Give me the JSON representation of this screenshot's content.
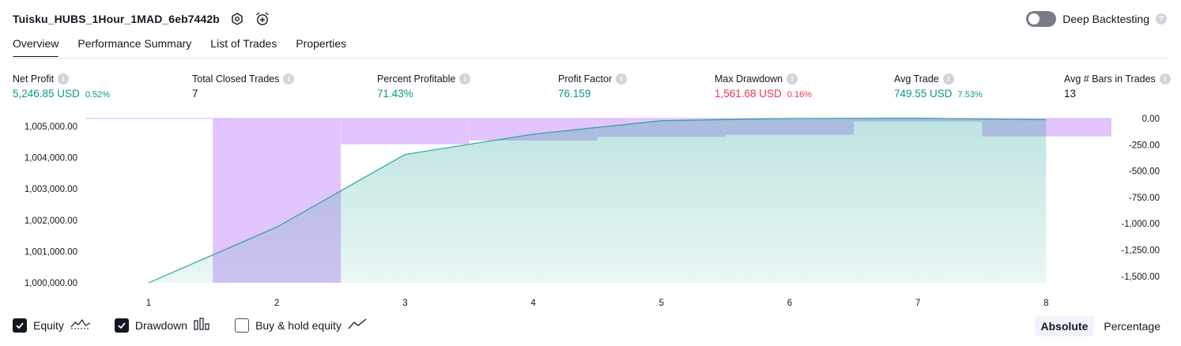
{
  "header": {
    "strategy_name": "Tuisku_HUBS_1Hour_1MAD_6eb7442b",
    "deep_backtesting_label": "Deep Backtesting",
    "icons": [
      "settings-icon",
      "alarm-plus-icon",
      "help-icon"
    ]
  },
  "tabs": [
    {
      "label": "Overview",
      "active": true
    },
    {
      "label": "Performance Summary",
      "active": false
    },
    {
      "label": "List of Trades",
      "active": false
    },
    {
      "label": "Properties",
      "active": false
    }
  ],
  "metrics": [
    {
      "label": "Net Profit",
      "value": "5,246.85 USD",
      "pct": "0.52%",
      "color": "green"
    },
    {
      "label": "Total Closed Trades",
      "value": "7",
      "pct": "",
      "color": "dark"
    },
    {
      "label": "Percent Profitable",
      "value": "71.43%",
      "pct": "",
      "color": "green"
    },
    {
      "label": "Profit Factor",
      "value": "76.159",
      "pct": "",
      "color": "green"
    },
    {
      "label": "Max Drawdown",
      "value": "1,561.68 USD",
      "pct": "0.16%",
      "color": "red"
    },
    {
      "label": "Avg Trade",
      "value": "749.55 USD",
      "pct": "7.53%",
      "color": "green"
    },
    {
      "label": "Avg # Bars in Trades",
      "value": "13",
      "pct": "",
      "color": "dark"
    }
  ],
  "chart_data": {
    "type": "area",
    "x": [
      1,
      2,
      3,
      4,
      5,
      6,
      7,
      8
    ],
    "series": [
      {
        "name": "Equity",
        "type": "area",
        "values": [
          1000000,
          1001780,
          1004100,
          1004750,
          1005180,
          1005250,
          1005260,
          1005210
        ]
      },
      {
        "name": "Drawdown",
        "type": "bar",
        "axis": "right",
        "values": [
          0,
          -1561.68,
          -245,
          -210,
          -175,
          -155,
          -30,
          -170
        ]
      }
    ],
    "left_axis": {
      "ticks": [
        "1,000,000.00",
        "1,001,000.00",
        "1,002,000.00",
        "1,003,000.00",
        "1,004,000.00",
        "1,005,000.00"
      ],
      "range": [
        1000000,
        1005250
      ]
    },
    "right_axis": {
      "ticks": [
        "0.00",
        "-250.00",
        "-500.00",
        "-750.00",
        "-1,000.00",
        "-1,250.00",
        "-1,500.00"
      ],
      "range": [
        -1561.68,
        0
      ]
    },
    "x_ticks": [
      "1",
      "2",
      "3",
      "4",
      "5",
      "6",
      "7",
      "8"
    ],
    "colors": {
      "equity_line": "#26a69a",
      "equity_fill": "#26a69a",
      "drawdown_fill": "#d7b2fb"
    }
  },
  "legend": [
    {
      "label": "Equity",
      "checked": true,
      "icon": "equity-wave-icon"
    },
    {
      "label": "Drawdown",
      "checked": true,
      "icon": "drawdown-bars-icon"
    },
    {
      "label": "Buy & hold equity",
      "checked": false,
      "icon": "buy-hold-line-icon"
    }
  ],
  "modes": [
    {
      "label": "Absolute",
      "active": true
    },
    {
      "label": "Percentage",
      "active": false
    }
  ]
}
